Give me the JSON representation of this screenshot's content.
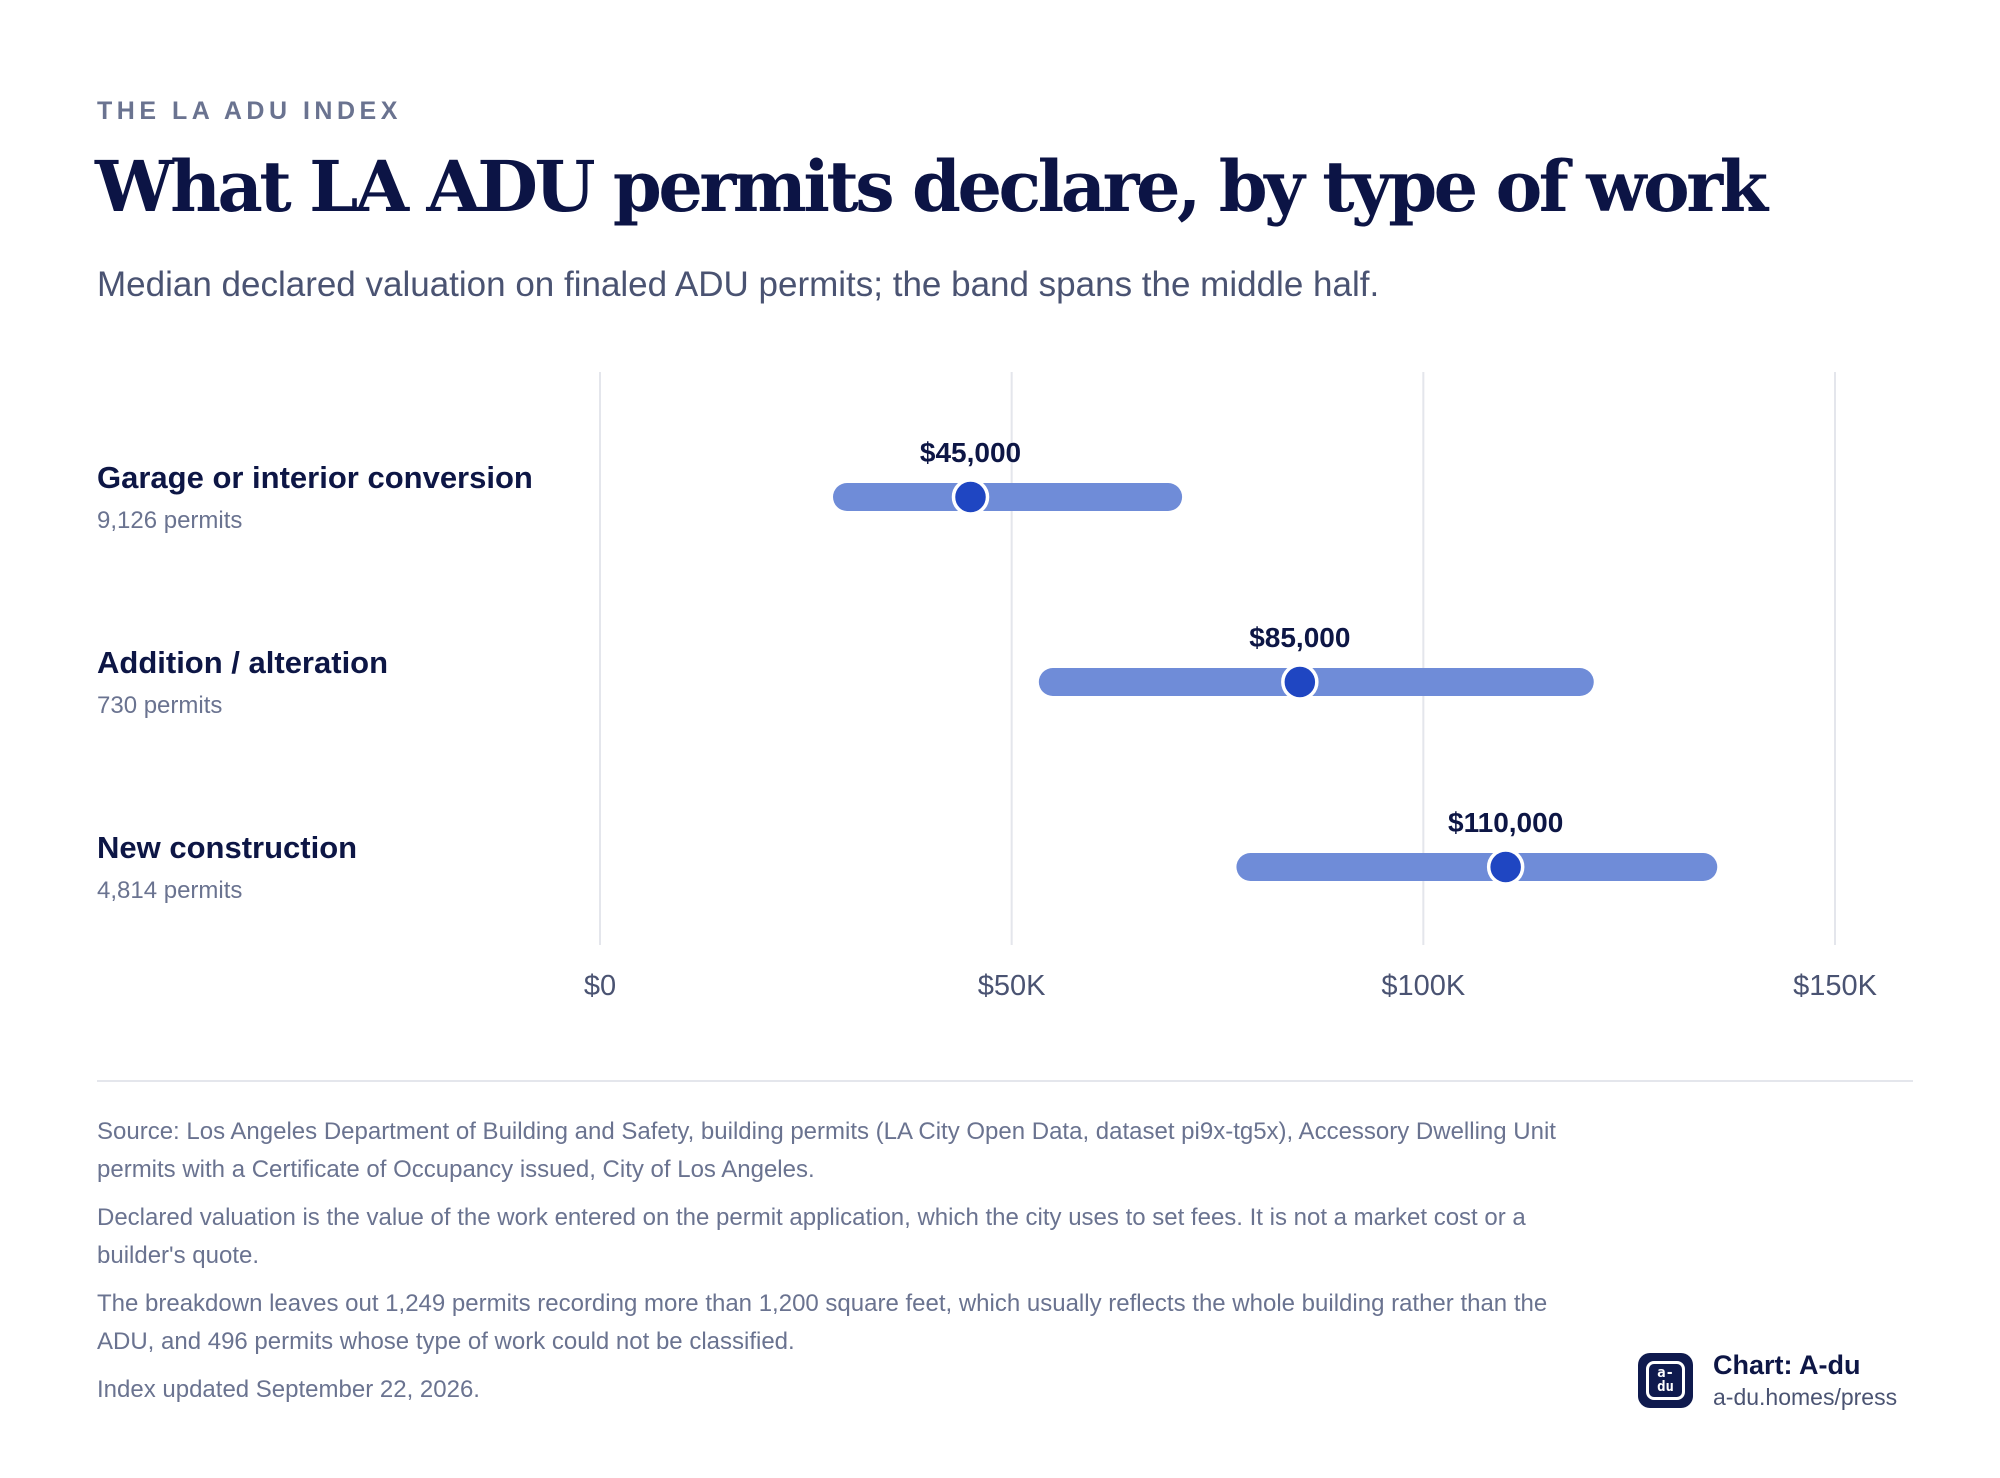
{
  "header": {
    "kicker": "THE LA ADU INDEX",
    "title": "What LA ADU permits declare, by type of work",
    "subtitle": "Median declared valuation on finaled ADU permits; the band spans the middle half."
  },
  "chart_data": {
    "type": "range-dot",
    "xlim": [
      0,
      150000
    ],
    "x_ticks": [
      0,
      50000,
      100000,
      150000
    ],
    "x_tick_labels": [
      "$0",
      "$50K",
      "$100K",
      "$150K"
    ],
    "grid": true,
    "rows": [
      {
        "label": "Garage or interior conversion",
        "count_label": "9,126 permits",
        "median": 45000,
        "median_label": "$45,000",
        "band_low": 30000,
        "band_high": 69000
      },
      {
        "label": "Addition / alteration",
        "count_label": "730 permits",
        "median": 85000,
        "median_label": "$85,000",
        "band_low": 55000,
        "band_high": 119000
      },
      {
        "label": "New construction",
        "count_label": "4,814 permits",
        "median": 110000,
        "median_label": "$110,000",
        "band_low": 79000,
        "band_high": 134000
      }
    ],
    "colors": {
      "band": "#6f8cd8",
      "dot": "#1f46c2",
      "dot_outline": "#ffffff",
      "grid": "#e4e6ec"
    }
  },
  "footer": {
    "notes": [
      "Source: Los Angeles Department of Building and Safety, building permits (LA City Open Data, dataset pi9x-tg5x), Accessory Dwelling Unit permits with a Certificate of Occupancy issued, City of Los Angeles.",
      "Declared valuation is the value of the work entered on the permit application, which the city uses to set fees. It is not a market cost or a builder's quote.",
      "The breakdown leaves out 1,249 permits recording more than 1,200 square feet, which usually reflects the whole building rather than the ADU, and 496 permits whose type of work could not be classified.",
      "Index updated September 22, 2026."
    ],
    "credit": {
      "name": "Chart: A-du",
      "url": "a-du.homes/press",
      "logo_top": "a-",
      "logo_bottom": "du"
    }
  }
}
